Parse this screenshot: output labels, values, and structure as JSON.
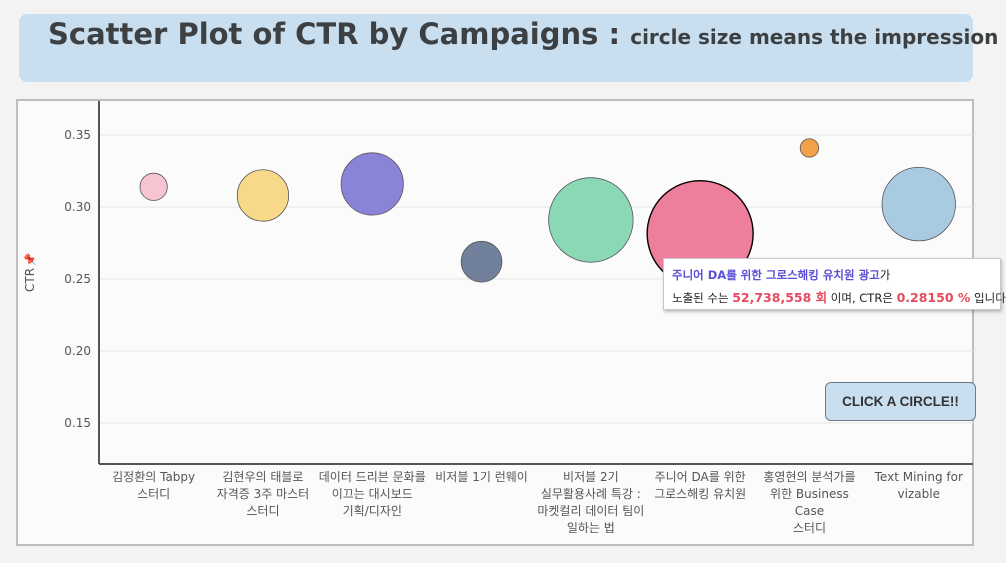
{
  "title": {
    "main": "Scatter Plot of CTR by Campaigns :",
    "sub": "circle size means the impression"
  },
  "click_button": "CLICK A CIRCLE!!",
  "chart_data": {
    "type": "scatter",
    "ylabel": "CTR",
    "ylabel_icon": "pin-icon",
    "ylim": [
      0.12,
      0.37
    ],
    "yticks": [
      "0.35",
      "0.30",
      "0.25",
      "0.20",
      "0.15"
    ],
    "grid": true,
    "points": [
      {
        "category_lines": [
          "김정환의 Tabpy",
          "스터디"
        ],
        "y": 0.314,
        "impressions": 3.5,
        "color": "#f7c5d1"
      },
      {
        "category_lines": [
          "김현우의 태블로",
          "자격증 3주 마스터",
          "스터디"
        ],
        "y": 0.308,
        "impressions": 12.4,
        "color": "#f8d98a"
      },
      {
        "category_lines": [
          "데이터 드리븐 문화를",
          "이끄는 대시보드",
          "기획/디자인"
        ],
        "y": 0.316,
        "impressions": 18.2,
        "color": "#8a84d8"
      },
      {
        "category_lines": [
          "비저블 1기 런웨이"
        ],
        "y": 0.262,
        "impressions": 7.8,
        "color": "#71819b"
      },
      {
        "category_lines": [
          "비저블 2기",
          "실무활용사례 특강 :",
          "마켓컬리 데이터 팀이",
          "일하는 법"
        ],
        "y": 0.291,
        "impressions": 33.5,
        "color": "#8ad8b4"
      },
      {
        "category_lines": [
          "주니어 DA를 위한",
          "그로스해킹 유치원"
        ],
        "y": 0.2815,
        "impressions": 52.7,
        "color": "#ee7f9c",
        "highlighted": true
      },
      {
        "category_lines": [
          "홍영현의 분석가를",
          "위한 Business Case",
          "스터디"
        ],
        "y": 0.341,
        "impressions": 1.6,
        "color": "#f2a04b"
      },
      {
        "category_lines": [
          "Text Mining for",
          "vizable"
        ],
        "y": 0.302,
        "impressions": 25.3,
        "color": "#a9cbe2"
      }
    ]
  },
  "tooltip": {
    "name": "주니어 DA를 위한 그로스해킹 유치원 광고",
    "name_suffix": "가",
    "prefix": "노출된 수는 ",
    "impressions": "52,738,558 회",
    "middle": " 이며, CTR은 ",
    "ctr": "0.28150 %",
    "suffix": " 입니다."
  }
}
